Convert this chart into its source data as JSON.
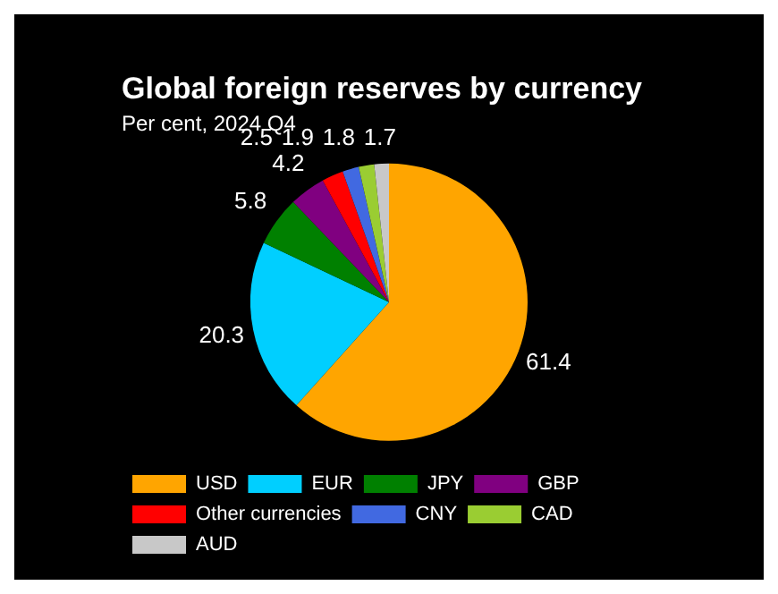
{
  "chart_data": {
    "type": "pie",
    "title": "Global foreign reserves by currency",
    "subtitle": "Per cent, 2024 Q4",
    "categories": [
      "USD",
      "EUR",
      "JPY",
      "GBP",
      "Other currencies",
      "CNY",
      "CAD",
      "AUD"
    ],
    "values": [
      61.4,
      20.3,
      5.8,
      4.2,
      2.5,
      1.9,
      1.8,
      1.7
    ],
    "colors": [
      "#ffa500",
      "#00cfff",
      "#008000",
      "#800080",
      "#ff0000",
      "#4169e1",
      "#9acd32",
      "#c8c8c8"
    ],
    "data_labels": true,
    "legend": "bottom"
  }
}
